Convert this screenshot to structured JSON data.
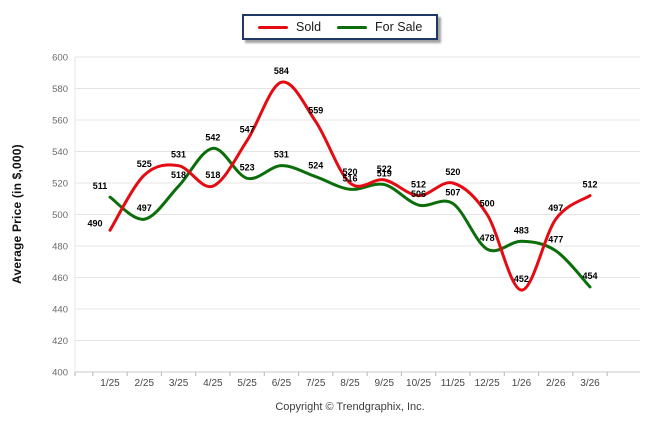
{
  "legend": {
    "items": [
      {
        "label": "Sold",
        "color": "#e50b12"
      },
      {
        "label": "For Sale",
        "color": "#0b6e0b"
      }
    ]
  },
  "y_axis": {
    "title": "Average Price (in $,000)",
    "tick_labels": [
      "400",
      "420",
      "440",
      "460",
      "480",
      "500",
      "520",
      "540",
      "560",
      "580",
      "600"
    ]
  },
  "x_axis": {
    "categories": [
      "1/25",
      "2/25",
      "3/25",
      "4/25",
      "5/25",
      "6/25",
      "7/25",
      "8/25",
      "9/25",
      "10/25",
      "11/25",
      "12/25",
      "1/26",
      "2/26",
      "3/26"
    ]
  },
  "footer": {
    "copyright": "Copyright © Trendgraphix, Inc."
  },
  "chart_data": {
    "type": "line",
    "categories": [
      "1/25",
      "2/25",
      "3/25",
      "4/25",
      "5/25",
      "6/25",
      "7/25",
      "8/25",
      "9/25",
      "10/25",
      "11/25",
      "12/25",
      "1/26",
      "2/26",
      "3/26"
    ],
    "series": [
      {
        "name": "Sold",
        "color": "#e50b12",
        "values": [
          490,
          525,
          531,
          518,
          547,
          584,
          559,
          520,
          522,
          512,
          520,
          500,
          452,
          497,
          512
        ]
      },
      {
        "name": "For Sale",
        "color": "#0b6e0b",
        "values": [
          511,
          497,
          518,
          542,
          523,
          531,
          524,
          516,
          519,
          506,
          507,
          478,
          483,
          477,
          454
        ]
      }
    ],
    "title": "",
    "xlabel": "",
    "ylabel": "Average Price (in $,000)",
    "ylim": [
      400,
      600
    ],
    "ytick_step": 20,
    "grid": true,
    "smooth": true,
    "data_labels": true,
    "legend_position": "top-center"
  }
}
